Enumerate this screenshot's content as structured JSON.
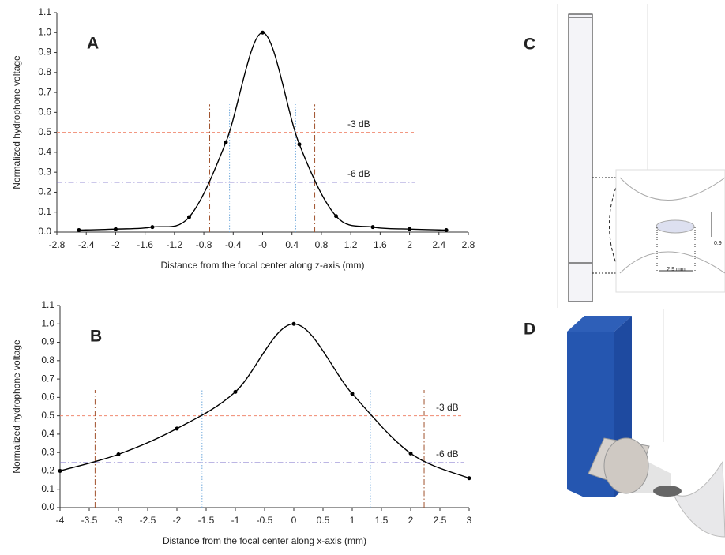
{
  "chart_data": [
    {
      "type": "line",
      "panel_label": "A",
      "xlabel": "Distance from the focal center along z-axis (mm)",
      "ylabel": "Normalized hydrophone voltage",
      "x": [
        -2.5,
        -2,
        -1.5,
        -1,
        -0.5,
        0,
        0.5,
        1,
        1.5,
        2,
        2.5
      ],
      "values": [
        0.01,
        0.015,
        0.025,
        0.075,
        0.45,
        1.0,
        0.44,
        0.08,
        0.025,
        0.015,
        0.01
      ],
      "color": "#000000",
      "xlim": [
        -2.8,
        2.8
      ],
      "xticks": [
        -2.8,
        -2.4,
        -2,
        -1.6,
        -1.2,
        -0.8,
        -0.4,
        {
          "value": 0,
          "label": "-0"
        },
        0.4,
        0.8,
        1.2,
        1.6,
        2,
        2.4,
        2.8
      ],
      "ylim": [
        0,
        1.1
      ],
      "yticks": [
        {
          "value": 0,
          "label": "0.0"
        },
        0.1,
        0.2,
        0.3,
        0.4,
        0.5,
        0.6,
        0.7,
        0.8,
        0.9,
        {
          "value": 1,
          "label": "1.0"
        },
        1.1
      ],
      "hlines": [
        {
          "value": 0.5,
          "label": "-3 dB",
          "color": "#f08a70",
          "style": "dashed"
        },
        {
          "value": 0.25,
          "label": "-6 dB",
          "color": "#7a6cc8",
          "style": "dashdot"
        }
      ],
      "vlines": [
        {
          "value": -0.45,
          "color": "#6fa8dc",
          "style": "dotted"
        },
        {
          "value": 0.45,
          "color": "#6fa8dc",
          "style": "dotted"
        },
        {
          "value": -0.72,
          "color": "#a0522d",
          "style": "dashdot"
        },
        {
          "value": 0.71,
          "color": "#a0522d",
          "style": "dashdot"
        }
      ]
    },
    {
      "type": "line",
      "panel_label": "B",
      "xlabel": "Distance from the focal center along x-axis (mm)",
      "ylabel": "Normalized hydrophone voltage",
      "x": [
        -4,
        -3,
        -2,
        -1,
        0,
        1,
        2,
        3
      ],
      "values": [
        0.2,
        0.29,
        0.43,
        0.63,
        1.0,
        0.62,
        0.295,
        0.16
      ],
      "color": "#000000",
      "xlim": [
        -4,
        3
      ],
      "xticks": [
        -4,
        -3.5,
        -3,
        -2.5,
        -2,
        -1.5,
        -1,
        -0.5,
        0,
        0.5,
        1,
        1.5,
        2,
        2.5,
        3
      ],
      "ylim": [
        0,
        1.1
      ],
      "yticks": [
        {
          "value": 0,
          "label": "0.0"
        },
        0.1,
        0.2,
        0.3,
        0.4,
        0.5,
        0.6,
        0.7,
        0.8,
        0.9,
        {
          "value": 1,
          "label": "1.0"
        },
        1.1
      ],
      "hlines": [
        {
          "value": 0.5,
          "label": "-3 dB",
          "color": "#f08a70",
          "style": "dashed"
        },
        {
          "value": 0.245,
          "label": "-6 dB",
          "color": "#7a6cc8",
          "style": "dashdot"
        }
      ],
      "vlines": [
        {
          "value": -1.57,
          "color": "#6fa8dc",
          "style": "dotted"
        },
        {
          "value": 1.31,
          "color": "#6fa8dc",
          "style": "dotted"
        },
        {
          "value": -3.4,
          "color": "#a0522d",
          "style": "dashdot"
        },
        {
          "value": 2.23,
          "color": "#a0522d",
          "style": "dashdot"
        }
      ]
    }
  ],
  "panels": {
    "c_label": "C",
    "d_label": "D",
    "dim_width": "2.9 mm",
    "dim_height": "0.9"
  }
}
